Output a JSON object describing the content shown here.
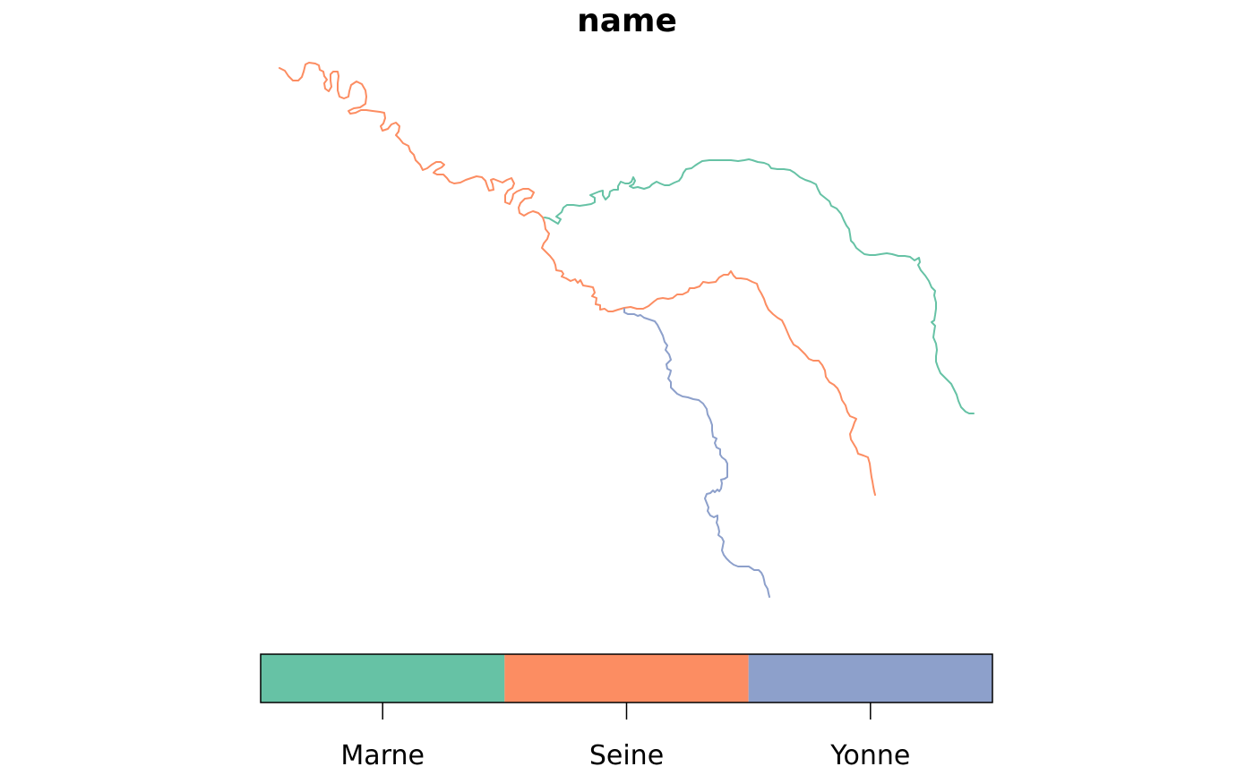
{
  "title": "name",
  "rivers": [
    {
      "name": "Marne",
      "color": "#66C2A5"
    },
    {
      "name": "Seine",
      "color": "#FC8D62"
    },
    {
      "name": "Yonne",
      "color": "#8DA0CB"
    }
  ],
  "legend": {
    "labels": [
      "Marne",
      "Seine",
      "Yonne"
    ],
    "colors": [
      "#66C2A5",
      "#FC8D62",
      "#8DA0CB"
    ]
  }
}
